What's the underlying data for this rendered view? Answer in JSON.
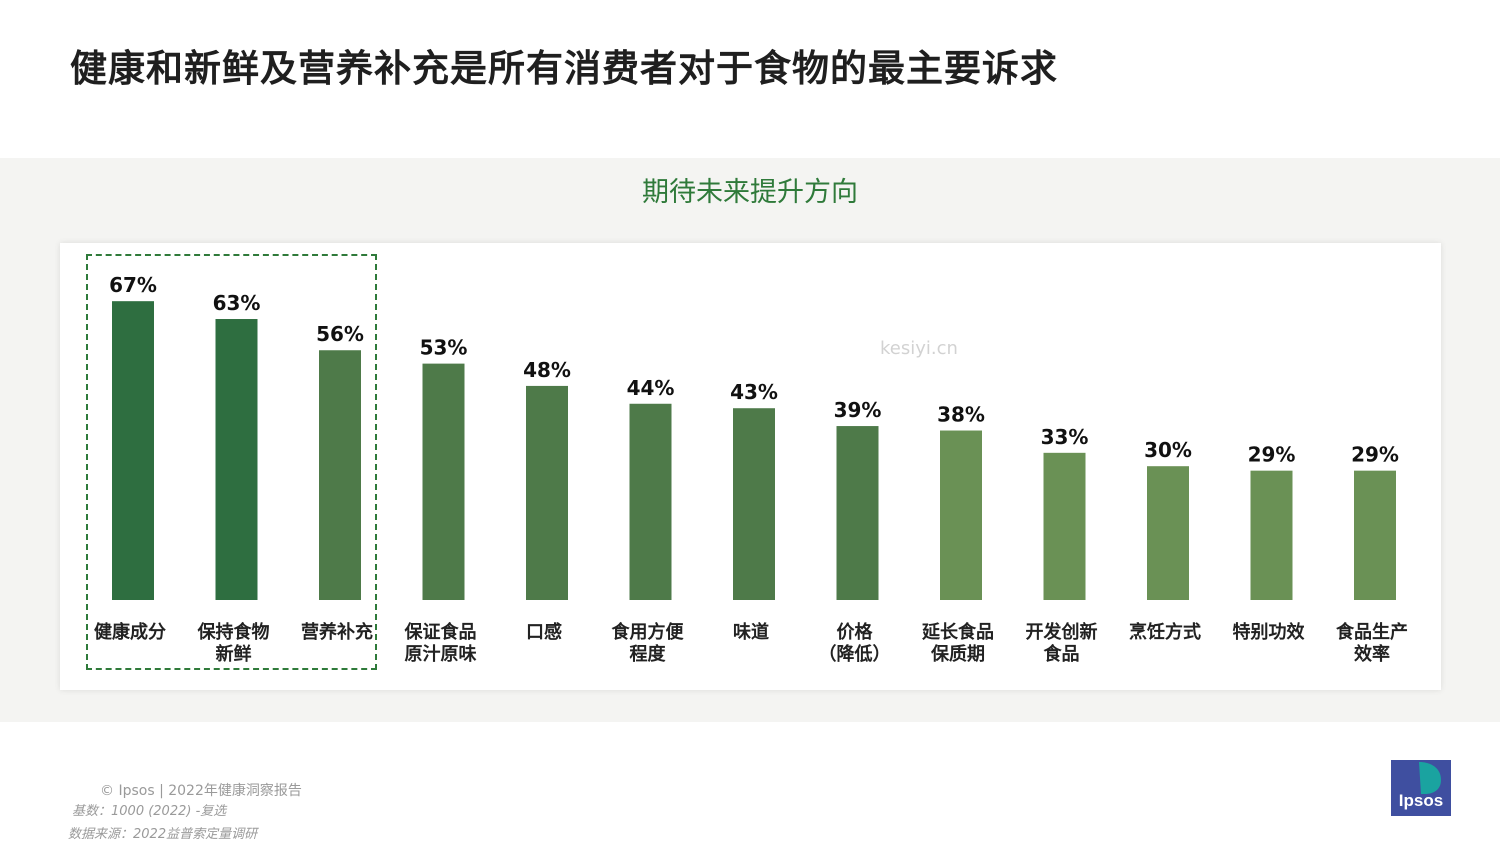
{
  "title": "健康和新鲜及营养补充是所有消费者对于食物的最主要诉求",
  "footer": {
    "copyright": "© Ipsos | 2022年健康洞察报告",
    "base": "基数：1000 (2022) -复选",
    "source": "数据来源：2022益普索定量调研"
  },
  "logo_text": "Ipsos",
  "watermark": "kesiyi.cn",
  "colors": {
    "title": "#1f1f1f",
    "subtitle": "#2f7a3a",
    "bar_dark": "#2e6e40",
    "bar_mid": "#4e7a49",
    "bar_light": "#6a9155",
    "highlight_border": "#2f7a3a",
    "logo_bg": "#3f4fa0",
    "logo_accent": "#1aa3a0"
  },
  "chart_data": {
    "type": "bar",
    "title": "期待未来提升方向",
    "xlabel": "",
    "ylabel": "",
    "ylim": [
      0,
      70
    ],
    "grid": false,
    "categories": [
      [
        "健康成分"
      ],
      [
        "保持食物",
        "新鲜"
      ],
      [
        "营养补充"
      ],
      [
        "保证食品",
        "原汁原味"
      ],
      [
        "口感"
      ],
      [
        "食用方便",
        "程度"
      ],
      [
        "味道"
      ],
      [
        "价格",
        "（降低）"
      ],
      [
        "延长食品",
        "保质期"
      ],
      [
        "开发创新",
        "食品"
      ],
      [
        "烹饪方式"
      ],
      [
        "特别功效"
      ],
      [
        "食品生产",
        "效率"
      ]
    ],
    "values": [
      67,
      63,
      56,
      53,
      48,
      44,
      43,
      39,
      38,
      33,
      30,
      29,
      29
    ],
    "value_labels": [
      "67%",
      "63%",
      "56%",
      "53%",
      "48%",
      "44%",
      "43%",
      "39%",
      "38%",
      "33%",
      "30%",
      "29%",
      "29%"
    ],
    "highlighted_categories": [
      "健康成分",
      "保持食物新鲜",
      "营养补充"
    ]
  }
}
